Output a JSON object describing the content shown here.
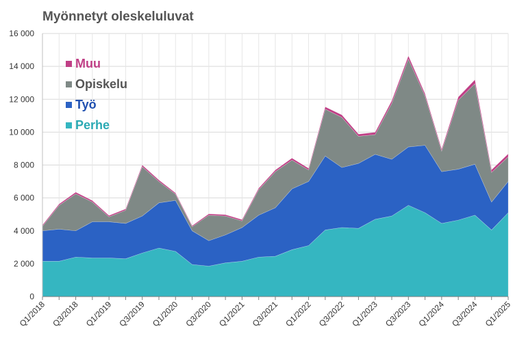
{
  "chart_data": {
    "type": "area",
    "stacked": true,
    "title": "Myönnetyt oleskeluluvat",
    "xlabel": "",
    "ylabel": "",
    "ylim": [
      0,
      16000
    ],
    "yticks": [
      0,
      2000,
      4000,
      6000,
      8000,
      10000,
      12000,
      14000,
      16000
    ],
    "ytick_labels": [
      "0",
      "2 000",
      "4 000",
      "6 000",
      "8 000",
      "10 000",
      "12 000",
      "14 000",
      "16 000"
    ],
    "grid": true,
    "legend_position": "top-left",
    "x": [
      "Q1/2018",
      "Q2/2018",
      "Q3/2018",
      "Q4/2018",
      "Q1/2019",
      "Q2/2019",
      "Q3/2019",
      "Q4/2019",
      "Q1/2020",
      "Q2/2020",
      "Q3/2020",
      "Q4/2020",
      "Q1/2021",
      "Q2/2021",
      "Q3/2021",
      "Q4/2021",
      "Q1/2022",
      "Q2/2022",
      "Q3/2022",
      "Q4/2022",
      "Q1/2023",
      "Q2/2023",
      "Q3/2023",
      "Q4/2023",
      "Q1/2024",
      "Q2/2024",
      "Q3/2024",
      "Q4/2024",
      "Q1/2025"
    ],
    "xtick_labels": [
      "Q1/2018",
      "Q3/2018",
      "Q1/2019",
      "Q3/2019",
      "Q1/2020",
      "Q3/2020",
      "Q1/2021",
      "Q3/2021",
      "Q1/2022",
      "Q3/2022",
      "Q1/2023",
      "Q3/2023",
      "Q1/2024",
      "Q3/2024",
      "Q1/2025"
    ],
    "series": [
      {
        "name": "Perhe",
        "color": "#35b6c1",
        "values": [
          2150,
          2150,
          2400,
          2350,
          2350,
          2300,
          2650,
          2950,
          2750,
          1950,
          1850,
          2050,
          2150,
          2400,
          2450,
          2850,
          3100,
          4050,
          4200,
          4150,
          4700,
          4900,
          5550,
          5100,
          4450,
          4650,
          4950,
          4050,
          5100
        ]
      },
      {
        "name": "Työ",
        "color": "#2b62c4",
        "values": [
          1850,
          1950,
          1600,
          2200,
          2200,
          2150,
          2250,
          2750,
          3100,
          2050,
          1550,
          1700,
          2050,
          2550,
          2950,
          3700,
          3900,
          4500,
          3650,
          3950,
          3950,
          3450,
          3550,
          4100,
          3150,
          3100,
          3100,
          1700,
          1900
        ]
      },
      {
        "name": "Opiskelu",
        "color": "#7f8986",
        "values": [
          280,
          1450,
          2250,
          1200,
          300,
          800,
          3000,
          1300,
          380,
          250,
          1550,
          1150,
          400,
          1550,
          2200,
          1750,
          700,
          2850,
          3050,
          1650,
          1200,
          3400,
          5350,
          3000,
          1250,
          4200,
          4900,
          1800,
          1500
        ]
      },
      {
        "name": "Muu",
        "color": "#c03f86",
        "values": [
          70,
          80,
          100,
          90,
          80,
          80,
          100,
          90,
          70,
          60,
          80,
          80,
          80,
          90,
          100,
          120,
          100,
          140,
          150,
          130,
          140,
          160,
          190,
          140,
          120,
          190,
          240,
          160,
          180
        ]
      }
    ],
    "legend_order": [
      "Muu",
      "Opiskelu",
      "Työ",
      "Perhe"
    ]
  }
}
